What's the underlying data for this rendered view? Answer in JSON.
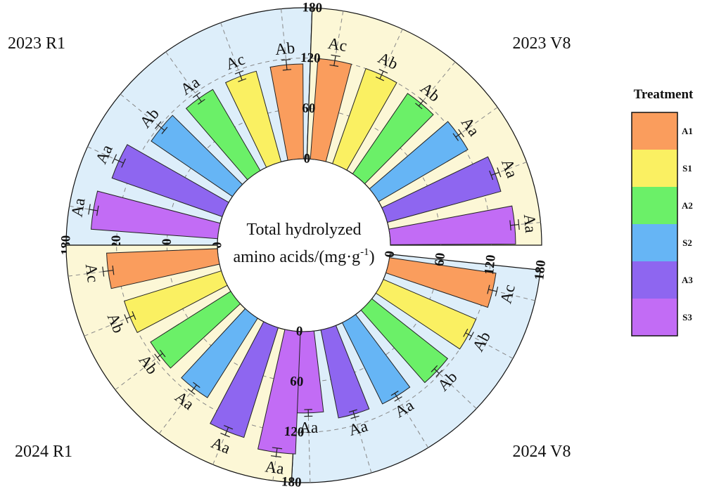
{
  "chart_data": {
    "type": "bar",
    "layout": "polar",
    "center_label": {
      "line1": "Total hydrolyzed",
      "line2": "amino acids/(mg·g",
      "line2_sup": "-1",
      "line2_end": ")"
    },
    "categories": [
      "A1",
      "S1",
      "A2",
      "S2",
      "A3",
      "S3"
    ],
    "colors": [
      "#FA9D5D",
      "#FAF062",
      "#6BF068",
      "#66B5F5",
      "#8E66F0",
      "#C26CF5"
    ],
    "axis": {
      "ticks": [
        "0",
        "60",
        "120",
        "180"
      ],
      "range": [
        0,
        180
      ]
    },
    "legend": {
      "title": "Treatment",
      "position": "right"
    },
    "panels": [
      {
        "title": "2023 R1",
        "background": "#DDEEFA",
        "values": [
          113,
          112,
          112,
          117,
          139,
          151
        ],
        "errors": [
          6,
          5,
          5,
          5,
          6,
          5
        ],
        "letters": [
          "Ab",
          "Ac",
          "Aa",
          "Ab",
          "Aa",
          "Aa"
        ]
      },
      {
        "title": "2023 V8",
        "background": "#FCF7D6",
        "values": [
          120,
          120,
          116,
          123,
          140,
          149
        ],
        "errors": [
          6,
          5,
          4,
          4,
          5,
          5
        ],
        "letters": [
          "Ac",
          "Ab",
          "Ab",
          "Aa",
          "Aa",
          "Aa"
        ]
      },
      {
        "title": "2024 V8",
        "background": "#DDEEFA",
        "values": [
          128,
          120,
          115,
          108,
          107,
          97
        ],
        "errors": [
          5,
          4,
          4,
          4,
          4,
          4
        ],
        "letters": [
          "Ac",
          "Ab",
          "Ab",
          "Aa",
          "Aa",
          "Aa"
        ]
      },
      {
        "title": "2024 R1",
        "background": "#FCF7D6",
        "values": [
          132,
          121,
          113,
          112,
          137,
          146
        ],
        "errors": [
          6,
          5,
          4,
          5,
          5,
          5
        ],
        "letters": [
          "Ac",
          "Ab",
          "Ab",
          "Aa",
          "Aa",
          "Aa"
        ]
      }
    ]
  }
}
